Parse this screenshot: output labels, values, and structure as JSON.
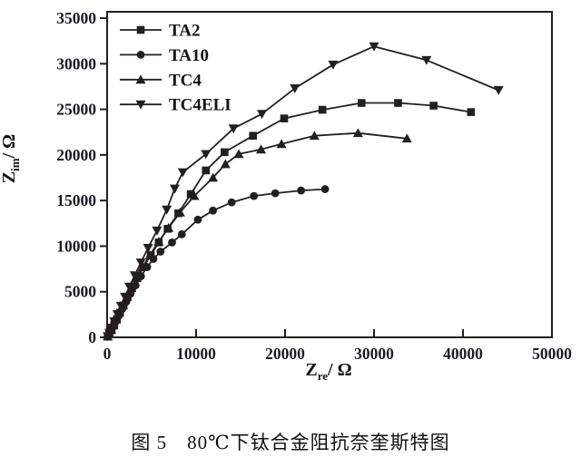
{
  "figure": {
    "caption": "图 5　80℃下钛合金阻抗奈奎斯特图"
  },
  "chart_data": {
    "type": "line",
    "title": "",
    "xlabel": {
      "symbol": "Z",
      "sub": "re",
      "unit": "/ Ω"
    },
    "ylabel": {
      "symbol": "Z",
      "sub": "im",
      "unit": "/ Ω"
    },
    "xlim": [
      0,
      50000
    ],
    "ylim": [
      0,
      35000
    ],
    "x_ticks": [
      0,
      10000,
      20000,
      30000,
      40000,
      50000
    ],
    "y_ticks": [
      0,
      5000,
      10000,
      15000,
      20000,
      25000,
      30000,
      35000
    ],
    "grid": false,
    "legend_position": "top-left",
    "colors": {
      "ink": "#231f20",
      "tick_text": "#1a1a24"
    },
    "legend": [
      "TA2",
      "TA10",
      "TC4",
      "TC4ELI"
    ],
    "series": [
      {
        "name": "TA2",
        "marker": "square",
        "points": [
          [
            80,
            100
          ],
          [
            250,
            400
          ],
          [
            500,
            850
          ],
          [
            800,
            1400
          ],
          [
            1100,
            2000
          ],
          [
            1450,
            2700
          ],
          [
            1850,
            3500
          ],
          [
            2300,
            4400
          ],
          [
            2800,
            5400
          ],
          [
            3400,
            6500
          ],
          [
            4100,
            7700
          ],
          [
            4900,
            9000
          ],
          [
            5800,
            10400
          ],
          [
            6800,
            11900
          ],
          [
            8000,
            13600
          ],
          [
            9400,
            15700
          ],
          [
            11100,
            18300
          ],
          [
            13200,
            20300
          ],
          [
            16400,
            22100
          ],
          [
            19900,
            24000
          ],
          [
            24200,
            24950
          ],
          [
            28600,
            25700
          ],
          [
            32700,
            25700
          ],
          [
            36700,
            25400
          ],
          [
            40900,
            24700
          ]
        ]
      },
      {
        "name": "TA10",
        "marker": "circle",
        "points": [
          [
            60,
            80
          ],
          [
            200,
            350
          ],
          [
            400,
            700
          ],
          [
            650,
            1150
          ],
          [
            950,
            1700
          ],
          [
            1300,
            2350
          ],
          [
            1700,
            3100
          ],
          [
            2150,
            3900
          ],
          [
            2650,
            4800
          ],
          [
            3200,
            5700
          ],
          [
            3800,
            6700
          ],
          [
            4500,
            7700
          ],
          [
            5200,
            8600
          ],
          [
            6000,
            9400
          ],
          [
            7300,
            10400
          ],
          [
            8400,
            11300
          ],
          [
            10200,
            12900
          ],
          [
            11900,
            13900
          ],
          [
            14000,
            14800
          ],
          [
            16500,
            15500
          ],
          [
            18900,
            15800
          ],
          [
            21800,
            16100
          ],
          [
            24500,
            16250
          ]
        ]
      },
      {
        "name": "TC4",
        "marker": "triangle-up",
        "points": [
          [
            70,
            90
          ],
          [
            230,
            400
          ],
          [
            450,
            800
          ],
          [
            700,
            1300
          ],
          [
            1000,
            1950
          ],
          [
            1350,
            2700
          ],
          [
            1750,
            3500
          ],
          [
            2200,
            4400
          ],
          [
            2700,
            5400
          ],
          [
            3300,
            6500
          ],
          [
            4000,
            7700
          ],
          [
            4800,
            9000
          ],
          [
            5800,
            10500
          ],
          [
            6900,
            12000
          ],
          [
            8200,
            13700
          ],
          [
            9800,
            15500
          ],
          [
            11900,
            17500
          ],
          [
            13300,
            19000
          ],
          [
            14800,
            20100
          ],
          [
            17300,
            20600
          ],
          [
            19600,
            21200
          ],
          [
            23300,
            22100
          ],
          [
            28200,
            22400
          ],
          [
            33700,
            21800
          ]
        ]
      },
      {
        "name": "TC4ELI",
        "marker": "triangle-down",
        "points": [
          [
            60,
            120
          ],
          [
            250,
            500
          ],
          [
            500,
            1050
          ],
          [
            800,
            1750
          ],
          [
            1150,
            2550
          ],
          [
            1550,
            3450
          ],
          [
            2000,
            4450
          ],
          [
            2500,
            5550
          ],
          [
            3100,
            6800
          ],
          [
            3800,
            8200
          ],
          [
            4600,
            9800
          ],
          [
            5600,
            11700
          ],
          [
            6700,
            14000
          ],
          [
            7600,
            16300
          ],
          [
            8500,
            18100
          ],
          [
            11100,
            20100
          ],
          [
            14200,
            22900
          ],
          [
            17400,
            24500
          ],
          [
            21100,
            27300
          ],
          [
            25400,
            29900
          ],
          [
            30000,
            31900
          ],
          [
            35900,
            30400
          ],
          [
            44000,
            27100
          ]
        ]
      }
    ]
  }
}
